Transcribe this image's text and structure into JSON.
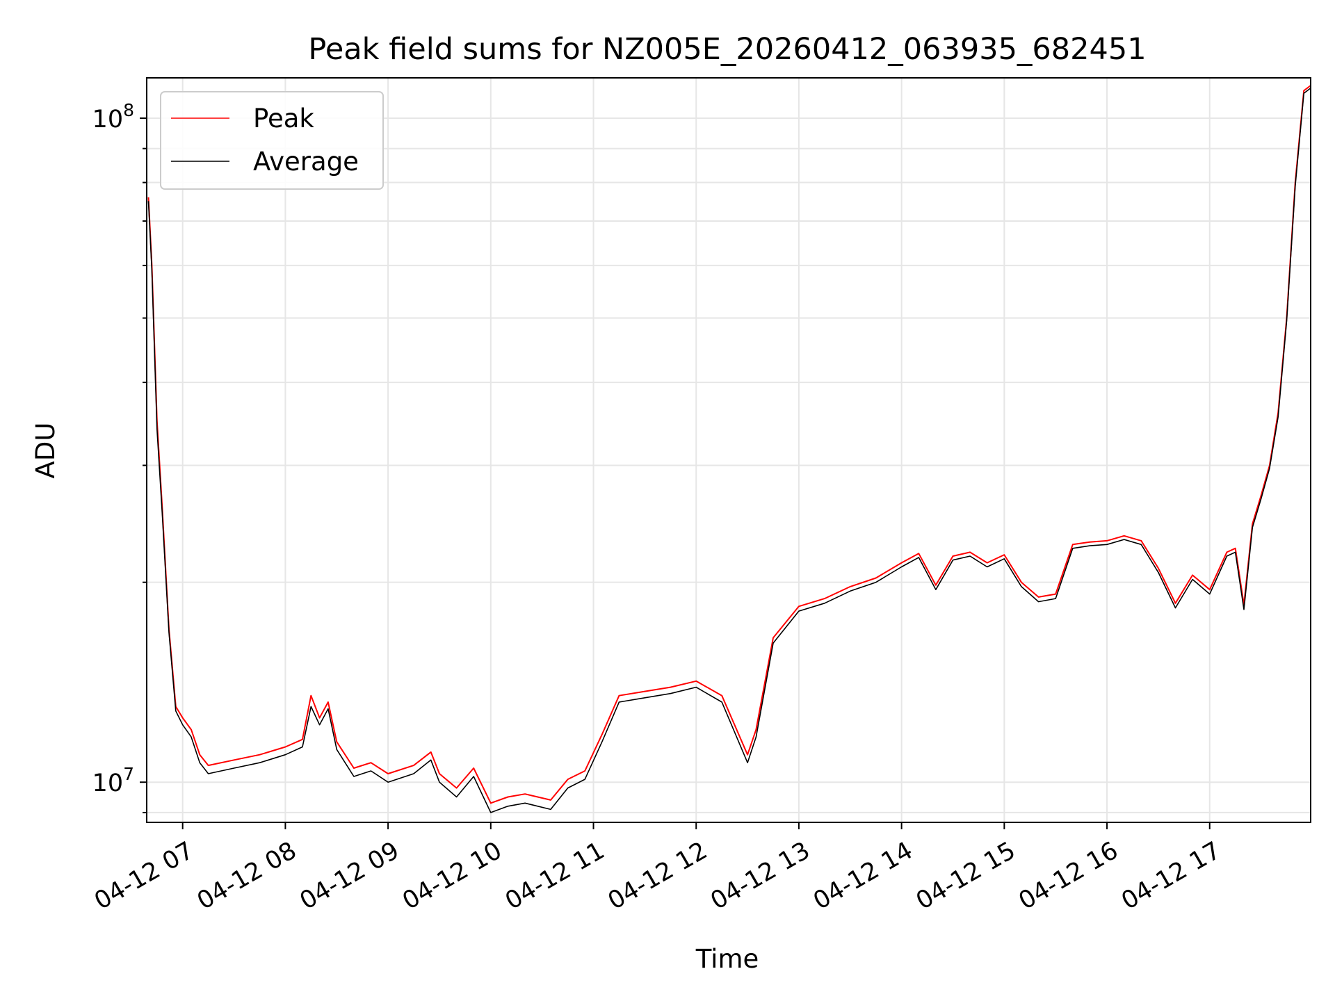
{
  "chart_data": {
    "type": "line",
    "title": "Peak field sums for NZ005E_20260412_063935_682451",
    "xlabel": "Time",
    "ylabel": "ADU",
    "yscale": "log",
    "ylim": [
      8700000,
      115000000
    ],
    "xlim": [
      "04-12 06:39",
      "04-12 17:59"
    ],
    "x_tick_labels": [
      "04-12 07",
      "04-12 08",
      "04-12 09",
      "04-12 10",
      "04-12 11",
      "04-12 12",
      "04-12 13",
      "04-12 14",
      "04-12 15",
      "04-12 16",
      "04-12 17"
    ],
    "y_tick_labels": [
      {
        "base": "10",
        "exp": "7",
        "value": 10000000
      },
      {
        "base": "10",
        "exp": "8",
        "value": 100000000
      }
    ],
    "grid": true,
    "legend_position": "upper-left",
    "series": [
      {
        "name": "Peak",
        "color": "#ff0000",
        "points": [
          [
            "04-12 06:40",
            76000000
          ],
          [
            "04-12 06:42",
            60000000
          ],
          [
            "04-12 06:45",
            35000000
          ],
          [
            "04-12 06:48",
            26000000
          ],
          [
            "04-12 06:52",
            17000000
          ],
          [
            "04-12 06:56",
            13000000
          ],
          [
            "04-12 07:00",
            12500000
          ],
          [
            "04-12 07:05",
            12000000
          ],
          [
            "04-12 07:10",
            11000000
          ],
          [
            "04-12 07:15",
            10600000
          ],
          [
            "04-12 07:30",
            10800000
          ],
          [
            "04-12 07:45",
            11000000
          ],
          [
            "04-12 08:00",
            11300000
          ],
          [
            "04-12 08:10",
            11600000
          ],
          [
            "04-12 08:15",
            13500000
          ],
          [
            "04-12 08:20",
            12500000
          ],
          [
            "04-12 08:25",
            13200000
          ],
          [
            "04-12 08:30",
            11500000
          ],
          [
            "04-12 08:40",
            10500000
          ],
          [
            "04-12 08:50",
            10700000
          ],
          [
            "04-12 09:00",
            10300000
          ],
          [
            "04-12 09:15",
            10600000
          ],
          [
            "04-12 09:25",
            11100000
          ],
          [
            "04-12 09:30",
            10300000
          ],
          [
            "04-12 09:40",
            9800000
          ],
          [
            "04-12 09:50",
            10500000
          ],
          [
            "04-12 10:00",
            9300000
          ],
          [
            "04-12 10:10",
            9500000
          ],
          [
            "04-12 10:20",
            9600000
          ],
          [
            "04-12 10:35",
            9400000
          ],
          [
            "04-12 10:45",
            10100000
          ],
          [
            "04-12 10:55",
            10400000
          ],
          [
            "04-12 11:05",
            11800000
          ],
          [
            "04-12 11:15",
            13500000
          ],
          [
            "04-12 11:30",
            13700000
          ],
          [
            "04-12 11:45",
            13900000
          ],
          [
            "04-12 12:00",
            14200000
          ],
          [
            "04-12 12:15",
            13500000
          ],
          [
            "04-12 12:30",
            11000000
          ],
          [
            "04-12 12:35",
            12000000
          ],
          [
            "04-12 12:45",
            16500000
          ],
          [
            "04-12 13:00",
            18400000
          ],
          [
            "04-12 13:15",
            18900000
          ],
          [
            "04-12 13:30",
            19700000
          ],
          [
            "04-12 13:45",
            20300000
          ],
          [
            "04-12 14:00",
            21400000
          ],
          [
            "04-12 14:10",
            22100000
          ],
          [
            "04-12 14:20",
            19800000
          ],
          [
            "04-12 14:30",
            21900000
          ],
          [
            "04-12 14:40",
            22200000
          ],
          [
            "04-12 14:50",
            21400000
          ],
          [
            "04-12 15:00",
            22000000
          ],
          [
            "04-12 15:10",
            20000000
          ],
          [
            "04-12 15:20",
            19000000
          ],
          [
            "04-12 15:30",
            19200000
          ],
          [
            "04-12 15:40",
            22800000
          ],
          [
            "04-12 15:50",
            23000000
          ],
          [
            "04-12 16:00",
            23100000
          ],
          [
            "04-12 16:10",
            23500000
          ],
          [
            "04-12 16:20",
            23100000
          ],
          [
            "04-12 16:30",
            21000000
          ],
          [
            "04-12 16:40",
            18600000
          ],
          [
            "04-12 16:50",
            20500000
          ],
          [
            "04-12 17:00",
            19500000
          ],
          [
            "04-12 17:10",
            22200000
          ],
          [
            "04-12 17:15",
            22500000
          ],
          [
            "04-12 17:20",
            18500000
          ],
          [
            "04-12 17:25",
            24500000
          ],
          [
            "04-12 17:30",
            27000000
          ],
          [
            "04-12 17:35",
            30000000
          ],
          [
            "04-12 17:40",
            36000000
          ],
          [
            "04-12 17:45",
            50000000
          ],
          [
            "04-12 17:50",
            80000000
          ],
          [
            "04-12 17:55",
            110000000
          ],
          [
            "04-12 17:59",
            112000000
          ]
        ]
      },
      {
        "name": "Average",
        "color": "#000000",
        "points": [
          [
            "04-12 06:40",
            75000000
          ],
          [
            "04-12 06:42",
            59000000
          ],
          [
            "04-12 06:45",
            34000000
          ],
          [
            "04-12 06:48",
            25500000
          ],
          [
            "04-12 06:52",
            16800000
          ],
          [
            "04-12 06:56",
            12800000
          ],
          [
            "04-12 07:00",
            12200000
          ],
          [
            "04-12 07:05",
            11700000
          ],
          [
            "04-12 07:10",
            10700000
          ],
          [
            "04-12 07:15",
            10300000
          ],
          [
            "04-12 07:30",
            10500000
          ],
          [
            "04-12 07:45",
            10700000
          ],
          [
            "04-12 08:00",
            11000000
          ],
          [
            "04-12 08:10",
            11300000
          ],
          [
            "04-12 08:15",
            13000000
          ],
          [
            "04-12 08:20",
            12200000
          ],
          [
            "04-12 08:25",
            12900000
          ],
          [
            "04-12 08:30",
            11200000
          ],
          [
            "04-12 08:40",
            10200000
          ],
          [
            "04-12 08:50",
            10400000
          ],
          [
            "04-12 09:00",
            10000000
          ],
          [
            "04-12 09:15",
            10300000
          ],
          [
            "04-12 09:25",
            10800000
          ],
          [
            "04-12 09:30",
            10000000
          ],
          [
            "04-12 09:40",
            9500000
          ],
          [
            "04-12 09:50",
            10200000
          ],
          [
            "04-12 10:00",
            9000000
          ],
          [
            "04-12 10:10",
            9200000
          ],
          [
            "04-12 10:20",
            9300000
          ],
          [
            "04-12 10:35",
            9100000
          ],
          [
            "04-12 10:45",
            9800000
          ],
          [
            "04-12 10:55",
            10100000
          ],
          [
            "04-12 11:05",
            11500000
          ],
          [
            "04-12 11:15",
            13200000
          ],
          [
            "04-12 11:30",
            13400000
          ],
          [
            "04-12 11:45",
            13600000
          ],
          [
            "04-12 12:00",
            13900000
          ],
          [
            "04-12 12:15",
            13200000
          ],
          [
            "04-12 12:30",
            10700000
          ],
          [
            "04-12 12:35",
            11700000
          ],
          [
            "04-12 12:45",
            16200000
          ],
          [
            "04-12 13:00",
            18100000
          ],
          [
            "04-12 13:15",
            18600000
          ],
          [
            "04-12 13:30",
            19400000
          ],
          [
            "04-12 13:45",
            20000000
          ],
          [
            "04-12 14:00",
            21100000
          ],
          [
            "04-12 14:10",
            21800000
          ],
          [
            "04-12 14:20",
            19500000
          ],
          [
            "04-12 14:30",
            21600000
          ],
          [
            "04-12 14:40",
            21900000
          ],
          [
            "04-12 14:50",
            21100000
          ],
          [
            "04-12 15:00",
            21700000
          ],
          [
            "04-12 15:10",
            19700000
          ],
          [
            "04-12 15:20",
            18700000
          ],
          [
            "04-12 15:30",
            18900000
          ],
          [
            "04-12 15:40",
            22500000
          ],
          [
            "04-12 15:50",
            22700000
          ],
          [
            "04-12 16:00",
            22800000
          ],
          [
            "04-12 16:10",
            23200000
          ],
          [
            "04-12 16:20",
            22800000
          ],
          [
            "04-12 16:30",
            20700000
          ],
          [
            "04-12 16:40",
            18300000
          ],
          [
            "04-12 16:50",
            20200000
          ],
          [
            "04-12 17:00",
            19200000
          ],
          [
            "04-12 17:10",
            21900000
          ],
          [
            "04-12 17:15",
            22200000
          ],
          [
            "04-12 17:20",
            18200000
          ],
          [
            "04-12 17:25",
            24200000
          ],
          [
            "04-12 17:30",
            26700000
          ],
          [
            "04-12 17:35",
            29700000
          ],
          [
            "04-12 17:40",
            35500000
          ],
          [
            "04-12 17:45",
            49500000
          ],
          [
            "04-12 17:50",
            79000000
          ],
          [
            "04-12 17:55",
            109000000
          ],
          [
            "04-12 17:59",
            111000000
          ]
        ]
      }
    ]
  }
}
